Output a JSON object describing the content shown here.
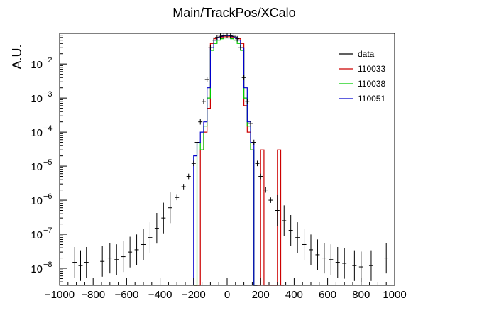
{
  "chart_data": {
    "type": "line",
    "title": "Main/TrackPos/XCalo",
    "xlabel": "",
    "ylabel": "A.U.",
    "xlim": [
      -1000,
      1000
    ],
    "ylim_log10": [
      -8.5,
      -1.1
    ],
    "log_y": true,
    "x_ticks": [
      "−1000",
      "−800",
      "−600",
      "−400",
      "−200",
      "0",
      "200",
      "400",
      "600",
      "800",
      "1000"
    ],
    "y_ticks": [
      "10",
      "10",
      "10",
      "10",
      "10",
      "10",
      "10"
    ],
    "y_tick_exponents": [
      "−8",
      "−7",
      "−6",
      "−5",
      "−4",
      "−3",
      "−2"
    ],
    "legend_position": "top-right",
    "series": [
      {
        "name": "data",
        "color": "#000000",
        "style": "points-with-errors",
        "x": [
          -910,
          -875,
          -840,
          -745,
          -700,
          -660,
          -620,
          -580,
          -540,
          -500,
          -460,
          -420,
          -380,
          -340,
          -300,
          -260,
          -230,
          -200,
          -180,
          -160,
          -140,
          -120,
          -100,
          -80,
          -60,
          -40,
          -20,
          0,
          20,
          40,
          60,
          80,
          100,
          120,
          140,
          160,
          180,
          200,
          230,
          260,
          300,
          340,
          380,
          420,
          460,
          500,
          540,
          580,
          620,
          660,
          700,
          760,
          800,
          860,
          950
        ],
        "y": [
          1.5e-08,
          1.2e-08,
          1.5e-08,
          1.6e-08,
          2e-08,
          1.8e-08,
          2.2e-08,
          3e-08,
          3.5e-08,
          5e-08,
          8e-08,
          1.5e-07,
          3e-07,
          6e-07,
          1.2e-06,
          2.5e-06,
          5e-06,
          1.2e-05,
          5e-05,
          0.0002,
          0.0008,
          0.0035,
          0.03,
          0.05,
          0.06,
          0.065,
          0.068,
          0.07,
          0.068,
          0.065,
          0.055,
          0.03,
          0.004,
          0.0008,
          0.00018,
          5e-05,
          1.2e-05,
          5e-06,
          2e-06,
          1e-06,
          5e-07,
          2.5e-07,
          1.3e-07,
          8e-08,
          5e-08,
          3.5e-08,
          2.5e-08,
          2e-08,
          1.8e-08,
          1.5e-08,
          1.4e-08,
          1.2e-08,
          1.1e-08,
          1.2e-08,
          2e-08
        ]
      },
      {
        "name": "110033",
        "color": "#cc0000",
        "style": "histogram",
        "x": [
          -190,
          -170,
          -150,
          -130,
          -110,
          -90,
          -70,
          -50,
          -30,
          -10,
          10,
          30,
          50,
          70,
          90,
          110,
          130,
          150,
          170,
          190,
          210,
          230,
          250,
          270,
          290,
          310,
          330
        ],
        "y": [
          0,
          0,
          3e-05,
          0.0001,
          0.0005,
          0.04,
          0.055,
          0.06,
          0.062,
          0.063,
          0.063,
          0.062,
          0.06,
          0.055,
          0.04,
          0.0006,
          0.0001,
          3e-05,
          0,
          0,
          3e-05,
          0,
          0,
          0,
          0,
          3e-05,
          0
        ]
      },
      {
        "name": "110038",
        "color": "#00cc00",
        "style": "histogram",
        "x": [
          -190,
          -170,
          -150,
          -130,
          -110,
          -90,
          -70,
          -50,
          -30,
          -10,
          10,
          30,
          50,
          70,
          90,
          110,
          130,
          150,
          170
        ],
        "y": [
          0,
          5e-05,
          3e-05,
          0.00015,
          0.001,
          0.025,
          0.04,
          0.05,
          0.055,
          0.058,
          0.058,
          0.055,
          0.05,
          0.04,
          0.025,
          0.001,
          0.00015,
          3e-05,
          0
        ]
      },
      {
        "name": "110051",
        "color": "#0000cc",
        "style": "histogram",
        "x": [
          -190,
          -170,
          -150,
          -130,
          -110,
          -90,
          -70,
          -50,
          -30,
          -10,
          10,
          30,
          50,
          70,
          90,
          110,
          130,
          150,
          170
        ],
        "y": [
          2e-05,
          5e-05,
          0.0001,
          0.0002,
          0.002,
          0.03,
          0.05,
          0.06,
          0.065,
          0.068,
          0.068,
          0.065,
          0.06,
          0.05,
          0.03,
          0.002,
          0.0002,
          5e-05,
          0
        ]
      }
    ]
  }
}
